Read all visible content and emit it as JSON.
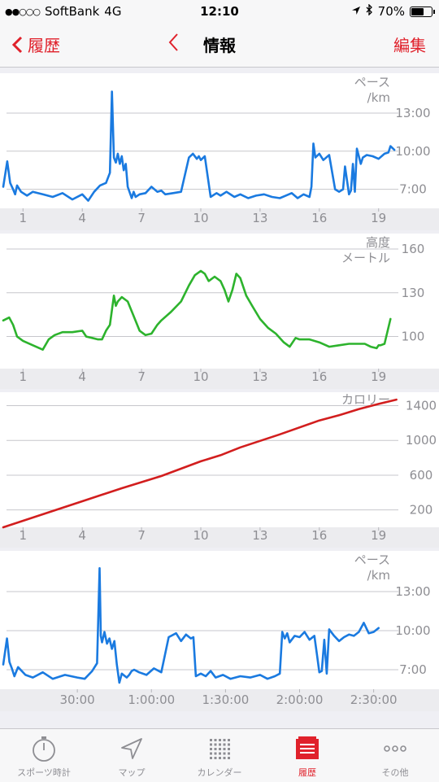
{
  "status_bar": {
    "carrier": "SoftBank",
    "network": "4G",
    "time": "12:10",
    "battery_percent": "70%",
    "battery_level": 0.7
  },
  "nav": {
    "back_label": "履歴",
    "title": "情報",
    "edit_label": "編集"
  },
  "colors": {
    "accent": "#e0212b",
    "pace": "#1a7ae0",
    "altitude": "#2db32d",
    "calories": "#d21e1e"
  },
  "chart_data": [
    {
      "id": "pace-distance",
      "type": "line",
      "title": "ペース",
      "unit_label": "/km",
      "xticks": [
        "1",
        "4",
        "7",
        "10",
        "13",
        "16",
        "19"
      ],
      "xtick_values": [
        1,
        4,
        7,
        10,
        13,
        16,
        19
      ],
      "xlim": [
        0,
        20
      ],
      "ylim": [
        5.5,
        15.5
      ],
      "yticks": [
        7,
        10,
        13
      ],
      "ytick_labels": [
        "7:00",
        "10:00",
        "13:00"
      ],
      "invert_y": false,
      "series": [
        {
          "color": "#1a7ae0",
          "x": [
            0.0,
            0.2,
            0.35,
            0.5,
            0.6,
            0.7,
            0.9,
            1.2,
            1.5,
            2.0,
            2.5,
            3.0,
            3.5,
            4.0,
            4.3,
            4.6,
            4.9,
            5.2,
            5.4,
            5.5,
            5.6,
            5.7,
            5.8,
            5.9,
            6.0,
            6.1,
            6.2,
            6.3,
            6.5,
            6.6,
            6.7,
            6.9,
            7.2,
            7.5,
            7.8,
            8.0,
            8.2,
            8.6,
            9.0,
            9.4,
            9.6,
            9.8,
            9.9,
            10.0,
            10.2,
            10.5,
            10.7,
            10.8,
            11.0,
            11.3,
            11.7,
            12.0,
            12.4,
            12.8,
            13.2,
            13.6,
            14.0,
            14.3,
            14.6,
            14.9,
            15.2,
            15.5,
            15.6,
            15.7,
            15.8,
            16.0,
            16.2,
            16.5,
            16.8,
            17.0,
            17.2,
            17.3,
            17.5,
            17.6,
            17.7,
            17.8,
            17.9,
            18.0,
            18.1,
            18.2,
            18.4,
            18.7,
            19.0,
            19.3,
            19.5,
            19.6,
            19.8
          ],
          "y": [
            7.2,
            9.2,
            7.5,
            7.0,
            6.6,
            7.3,
            6.8,
            6.5,
            6.8,
            6.6,
            6.4,
            6.7,
            6.2,
            6.6,
            6.1,
            6.8,
            7.3,
            7.5,
            8.3,
            14.7,
            9.5,
            9.1,
            9.8,
            9.0,
            9.6,
            8.5,
            9.0,
            7.2,
            6.3,
            6.8,
            6.4,
            6.6,
            6.7,
            7.2,
            6.8,
            6.9,
            6.6,
            6.7,
            6.8,
            9.5,
            9.8,
            9.4,
            9.6,
            9.3,
            9.6,
            6.4,
            6.6,
            6.7,
            6.5,
            6.8,
            6.4,
            6.6,
            6.3,
            6.5,
            6.6,
            6.4,
            6.3,
            6.5,
            6.7,
            6.3,
            6.6,
            6.4,
            7.2,
            10.6,
            9.5,
            9.8,
            9.3,
            9.7,
            7.0,
            6.8,
            7.0,
            8.8,
            6.6,
            6.9,
            9.0,
            6.8,
            10.2,
            9.6,
            9.0,
            9.5,
            9.7,
            9.6,
            9.4,
            9.8,
            9.9,
            10.4,
            10.1
          ]
        }
      ]
    },
    {
      "id": "altitude-distance",
      "type": "line",
      "title": "高度",
      "unit_label": "メートル",
      "xticks": [
        "1",
        "4",
        "7",
        "10",
        "13",
        "16",
        "19"
      ],
      "xtick_values": [
        1,
        4,
        7,
        10,
        13,
        16,
        19
      ],
      "xlim": [
        0,
        20
      ],
      "ylim": [
        78,
        165
      ],
      "yticks": [
        100,
        130,
        160
      ],
      "ytick_labels": [
        "100",
        "130",
        "160"
      ],
      "invert_y": false,
      "series": [
        {
          "color": "#2db32d",
          "x": [
            0.0,
            0.3,
            0.5,
            0.7,
            1.0,
            1.5,
            2.0,
            2.3,
            2.6,
            3.0,
            3.5,
            4.0,
            4.2,
            4.5,
            4.8,
            5.0,
            5.2,
            5.4,
            5.6,
            5.7,
            5.8,
            6.0,
            6.3,
            6.6,
            6.9,
            7.2,
            7.5,
            7.8,
            8.0,
            8.5,
            9.0,
            9.4,
            9.7,
            10.0,
            10.2,
            10.4,
            10.7,
            11.0,
            11.2,
            11.4,
            11.6,
            11.8,
            12.0,
            12.3,
            12.6,
            13.0,
            13.4,
            13.8,
            14.2,
            14.5,
            14.8,
            15.0,
            15.5,
            16.0,
            16.5,
            17.0,
            17.5,
            18.0,
            18.3,
            18.6,
            18.9,
            19.0,
            19.1,
            19.3,
            19.6
          ],
          "y": [
            111,
            113,
            108,
            100,
            97,
            94,
            91,
            98,
            101,
            103,
            103,
            104,
            100,
            99,
            98,
            98,
            104,
            108,
            128,
            121,
            124,
            127,
            124,
            114,
            104,
            101,
            102,
            108,
            111,
            117,
            124,
            135,
            142,
            145,
            143,
            138,
            141,
            138,
            132,
            124,
            132,
            143,
            140,
            128,
            121,
            112,
            106,
            102,
            96,
            93,
            99,
            98,
            98,
            96,
            93,
            94,
            95,
            95,
            95,
            93,
            92,
            94,
            94,
            95,
            112
          ]
        }
      ]
    },
    {
      "id": "calories-distance",
      "type": "line",
      "title": "カロリー",
      "unit_label": "",
      "xticks": [
        "1",
        "4",
        "7",
        "10",
        "13",
        "16",
        "19"
      ],
      "xtick_values": [
        1,
        4,
        7,
        10,
        13,
        16,
        19
      ],
      "xlim": [
        0,
        20
      ],
      "ylim": [
        0,
        1480
      ],
      "yticks": [
        200,
        600,
        1000,
        1400
      ],
      "ytick_labels": [
        "200",
        "600",
        "1000",
        "1400"
      ],
      "invert_y": false,
      "series": [
        {
          "color": "#d21e1e",
          "x": [
            0,
            2,
            4,
            6,
            8,
            10,
            11,
            12,
            14,
            16,
            17,
            18,
            19,
            19.9
          ],
          "y": [
            0,
            150,
            300,
            450,
            590,
            760,
            830,
            920,
            1070,
            1230,
            1290,
            1360,
            1420,
            1470
          ]
        }
      ]
    },
    {
      "id": "pace-time",
      "type": "line",
      "title": "ペース",
      "unit_label": "/km",
      "xticks": [
        "30:00",
        "1:00:00",
        "1:30:00",
        "2:00:00",
        "2:30:00"
      ],
      "xtick_values": [
        30,
        60,
        90,
        120,
        150
      ],
      "xlim": [
        0,
        160
      ],
      "ylim": [
        5.5,
        15.5
      ],
      "yticks": [
        7,
        10,
        13
      ],
      "ytick_labels": [
        "7:00",
        "10:00",
        "13:00"
      ],
      "invert_y": false,
      "series": [
        {
          "color": "#1a7ae0",
          "x": [
            0,
            1.5,
            2.5,
            3.5,
            4.5,
            6,
            9,
            12,
            16,
            20,
            25,
            30,
            33,
            36,
            38,
            39,
            39.5,
            40,
            41,
            42,
            43,
            44,
            45,
            46,
            47,
            48,
            50,
            51,
            52,
            53,
            55,
            58,
            61,
            64,
            67,
            70,
            72,
            74,
            76,
            77,
            78,
            80,
            82,
            84,
            86,
            89,
            92,
            96,
            100,
            104,
            107,
            110,
            112,
            113,
            114,
            115,
            116,
            118,
            120,
            122,
            124,
            126,
            127,
            128,
            129,
            130,
            131,
            132,
            134,
            136,
            138,
            140,
            142,
            144,
            146,
            148,
            150,
            152
          ],
          "y": [
            7.4,
            9.4,
            7.6,
            7.1,
            6.5,
            7.2,
            6.6,
            6.4,
            6.8,
            6.3,
            6.6,
            6.4,
            6.3,
            6.9,
            7.5,
            14.8,
            9.6,
            9.1,
            9.9,
            9.0,
            9.4,
            8.6,
            9.2,
            7.4,
            6.0,
            6.7,
            6.4,
            6.6,
            6.9,
            7.0,
            6.8,
            6.6,
            7.1,
            6.8,
            9.5,
            9.8,
            9.2,
            9.7,
            9.4,
            9.5,
            6.5,
            6.7,
            6.5,
            6.9,
            6.4,
            6.6,
            6.3,
            6.5,
            6.4,
            6.6,
            6.3,
            6.5,
            6.7,
            9.9,
            9.4,
            9.8,
            9.1,
            9.6,
            9.5,
            9.9,
            9.3,
            9.6,
            8.2,
            6.8,
            6.9,
            9.3,
            6.7,
            10.1,
            9.6,
            9.2,
            9.5,
            9.7,
            9.6,
            9.9,
            10.6,
            9.8,
            9.9,
            10.2
          ]
        }
      ]
    }
  ],
  "tabs": [
    {
      "label": "スポーツ時計",
      "icon": "stopwatch-icon"
    },
    {
      "label": "マップ",
      "icon": "map-arrow-icon"
    },
    {
      "label": "カレンダー",
      "icon": "calendar-grid-icon"
    },
    {
      "label": "履歴",
      "icon": "history-icon"
    },
    {
      "label": "その他",
      "icon": "more-icon"
    }
  ]
}
